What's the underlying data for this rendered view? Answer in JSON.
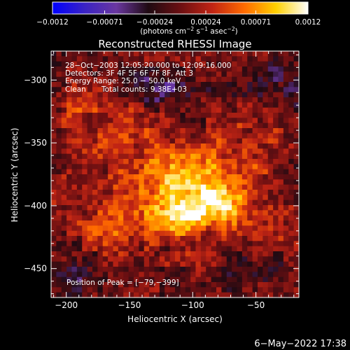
{
  "chart_data": {
    "type": "heatmap",
    "title": "Reconstructed RHESSI Image",
    "xlabel": "Heliocentric X (arcsec)",
    "ylabel": "Heliocentric Y (arcsec)",
    "xlim": [
      -212,
      -16
    ],
    "ylim": [
      -473,
      -277
    ],
    "x_ticks": [
      -200,
      -150,
      -100,
      -50
    ],
    "y_ticks": [
      -300,
      -350,
      -400,
      -450
    ],
    "x_tick_labels": [
      "−200",
      "−150",
      "−100",
      "−50"
    ],
    "y_tick_labels": [
      "−300",
      "−350",
      "−400",
      "−450"
    ],
    "colorbar": {
      "range": [
        -0.0012,
        0.0012
      ],
      "ticks": [
        -0.0012,
        -0.00071,
        -0.00024,
        0.00024,
        0.00071,
        0.0012
      ],
      "tick_labels": [
        "−0.0012",
        "−0.00071",
        "−0.00024",
        "0.00024",
        "0.00071",
        "0.0012"
      ],
      "unit_parts": [
        "(photons cm",
        "−2",
        " s",
        "−1",
        " asec",
        "−2",
        ")"
      ],
      "colors": [
        "#0000ff",
        "#3a23c4",
        "#6a37a0",
        "#1f0a12",
        "#6b0f12",
        "#c02414",
        "#ff6a00",
        "#ffd000",
        "#ffffff"
      ]
    },
    "annotations": {
      "time_range": "28−Oct−2003 12:05:20.000 to 12:09:16.000",
      "detectors": "Detectors: 3F 4F 5F 6F 7F 8F, Att 3",
      "energy_range": "Energy Range: 25.0 − 50.0 keV",
      "clean_label": "Clean",
      "total_counts": "Total counts: 9.38E+03",
      "peak_position": "Position of Peak = [−79,−399]"
    },
    "peak": [
      -79,
      -399
    ],
    "sources": [
      {
        "x": -95,
        "y": -388,
        "sx": 30,
        "sy": 22,
        "amp": 0.0008
      },
      {
        "x": -79,
        "y": -399,
        "sx": 13,
        "sy": 10,
        "amp": 0.00055
      },
      {
        "x": -112,
        "y": -408,
        "sx": 12,
        "sy": 9,
        "amp": 0.00048
      },
      {
        "x": -115,
        "y": -370,
        "sx": 15,
        "sy": 12,
        "amp": 0.00042
      },
      {
        "x": -160,
        "y": -335,
        "sx": 20,
        "sy": 28,
        "amp": 0.00035
      },
      {
        "x": -150,
        "y": -410,
        "sx": 40,
        "sy": 15,
        "amp": 0.0003
      },
      {
        "x": -195,
        "y": -320,
        "sx": 10,
        "sy": 15,
        "amp": 0.00025
      },
      {
        "x": -165,
        "y": -425,
        "sx": 12,
        "sy": 10,
        "amp": 0.0003
      },
      {
        "x": -40,
        "y": -420,
        "sx": 18,
        "sy": 12,
        "amp": 0.00022
      },
      {
        "x": -55,
        "y": -350,
        "sx": 18,
        "sy": 15,
        "amp": 0.00025
      },
      {
        "x": -135,
        "y": -305,
        "sx": 22,
        "sy": 10,
        "amp": -0.0006
      },
      {
        "x": -35,
        "y": -300,
        "sx": 22,
        "sy": 14,
        "amp": -0.0003
      },
      {
        "x": -190,
        "y": -455,
        "sx": 18,
        "sy": 16,
        "amp": -0.00025
      },
      {
        "x": -60,
        "y": -455,
        "sx": 20,
        "sy": 12,
        "amp": -0.0002
      }
    ]
  },
  "footer": {
    "timestamp": "6−May−2022 17:38"
  }
}
